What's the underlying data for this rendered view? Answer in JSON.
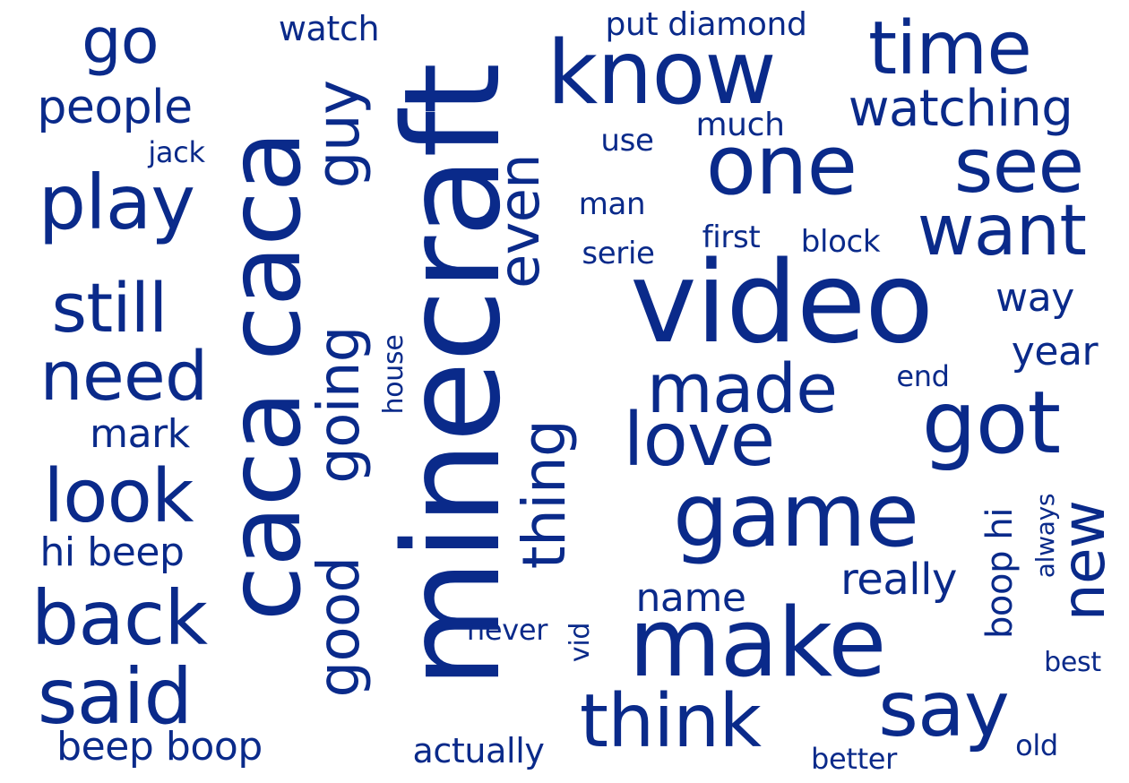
{
  "colors": {
    "word": "#0a2a8a",
    "background": "#ffffff"
  },
  "words": [
    "minecraft",
    "video",
    "caca caca",
    "make",
    "game",
    "know",
    "one",
    "love",
    "made",
    "got",
    "see",
    "want",
    "time",
    "think",
    "say",
    "good",
    "going",
    "guy",
    "look",
    "play",
    "back",
    "said",
    "need",
    "still",
    "go",
    "thing",
    "even",
    "new",
    "watching",
    "name",
    "really",
    "people",
    "beep boop",
    "hi beep",
    "mark",
    "boop hi",
    "year",
    "way",
    "much",
    "watch",
    "put diamond",
    "actually",
    "use",
    "man",
    "serie",
    "first",
    "block",
    "end",
    "house",
    "jack",
    "never",
    "vid",
    "always",
    "best",
    "better",
    "old"
  ]
}
